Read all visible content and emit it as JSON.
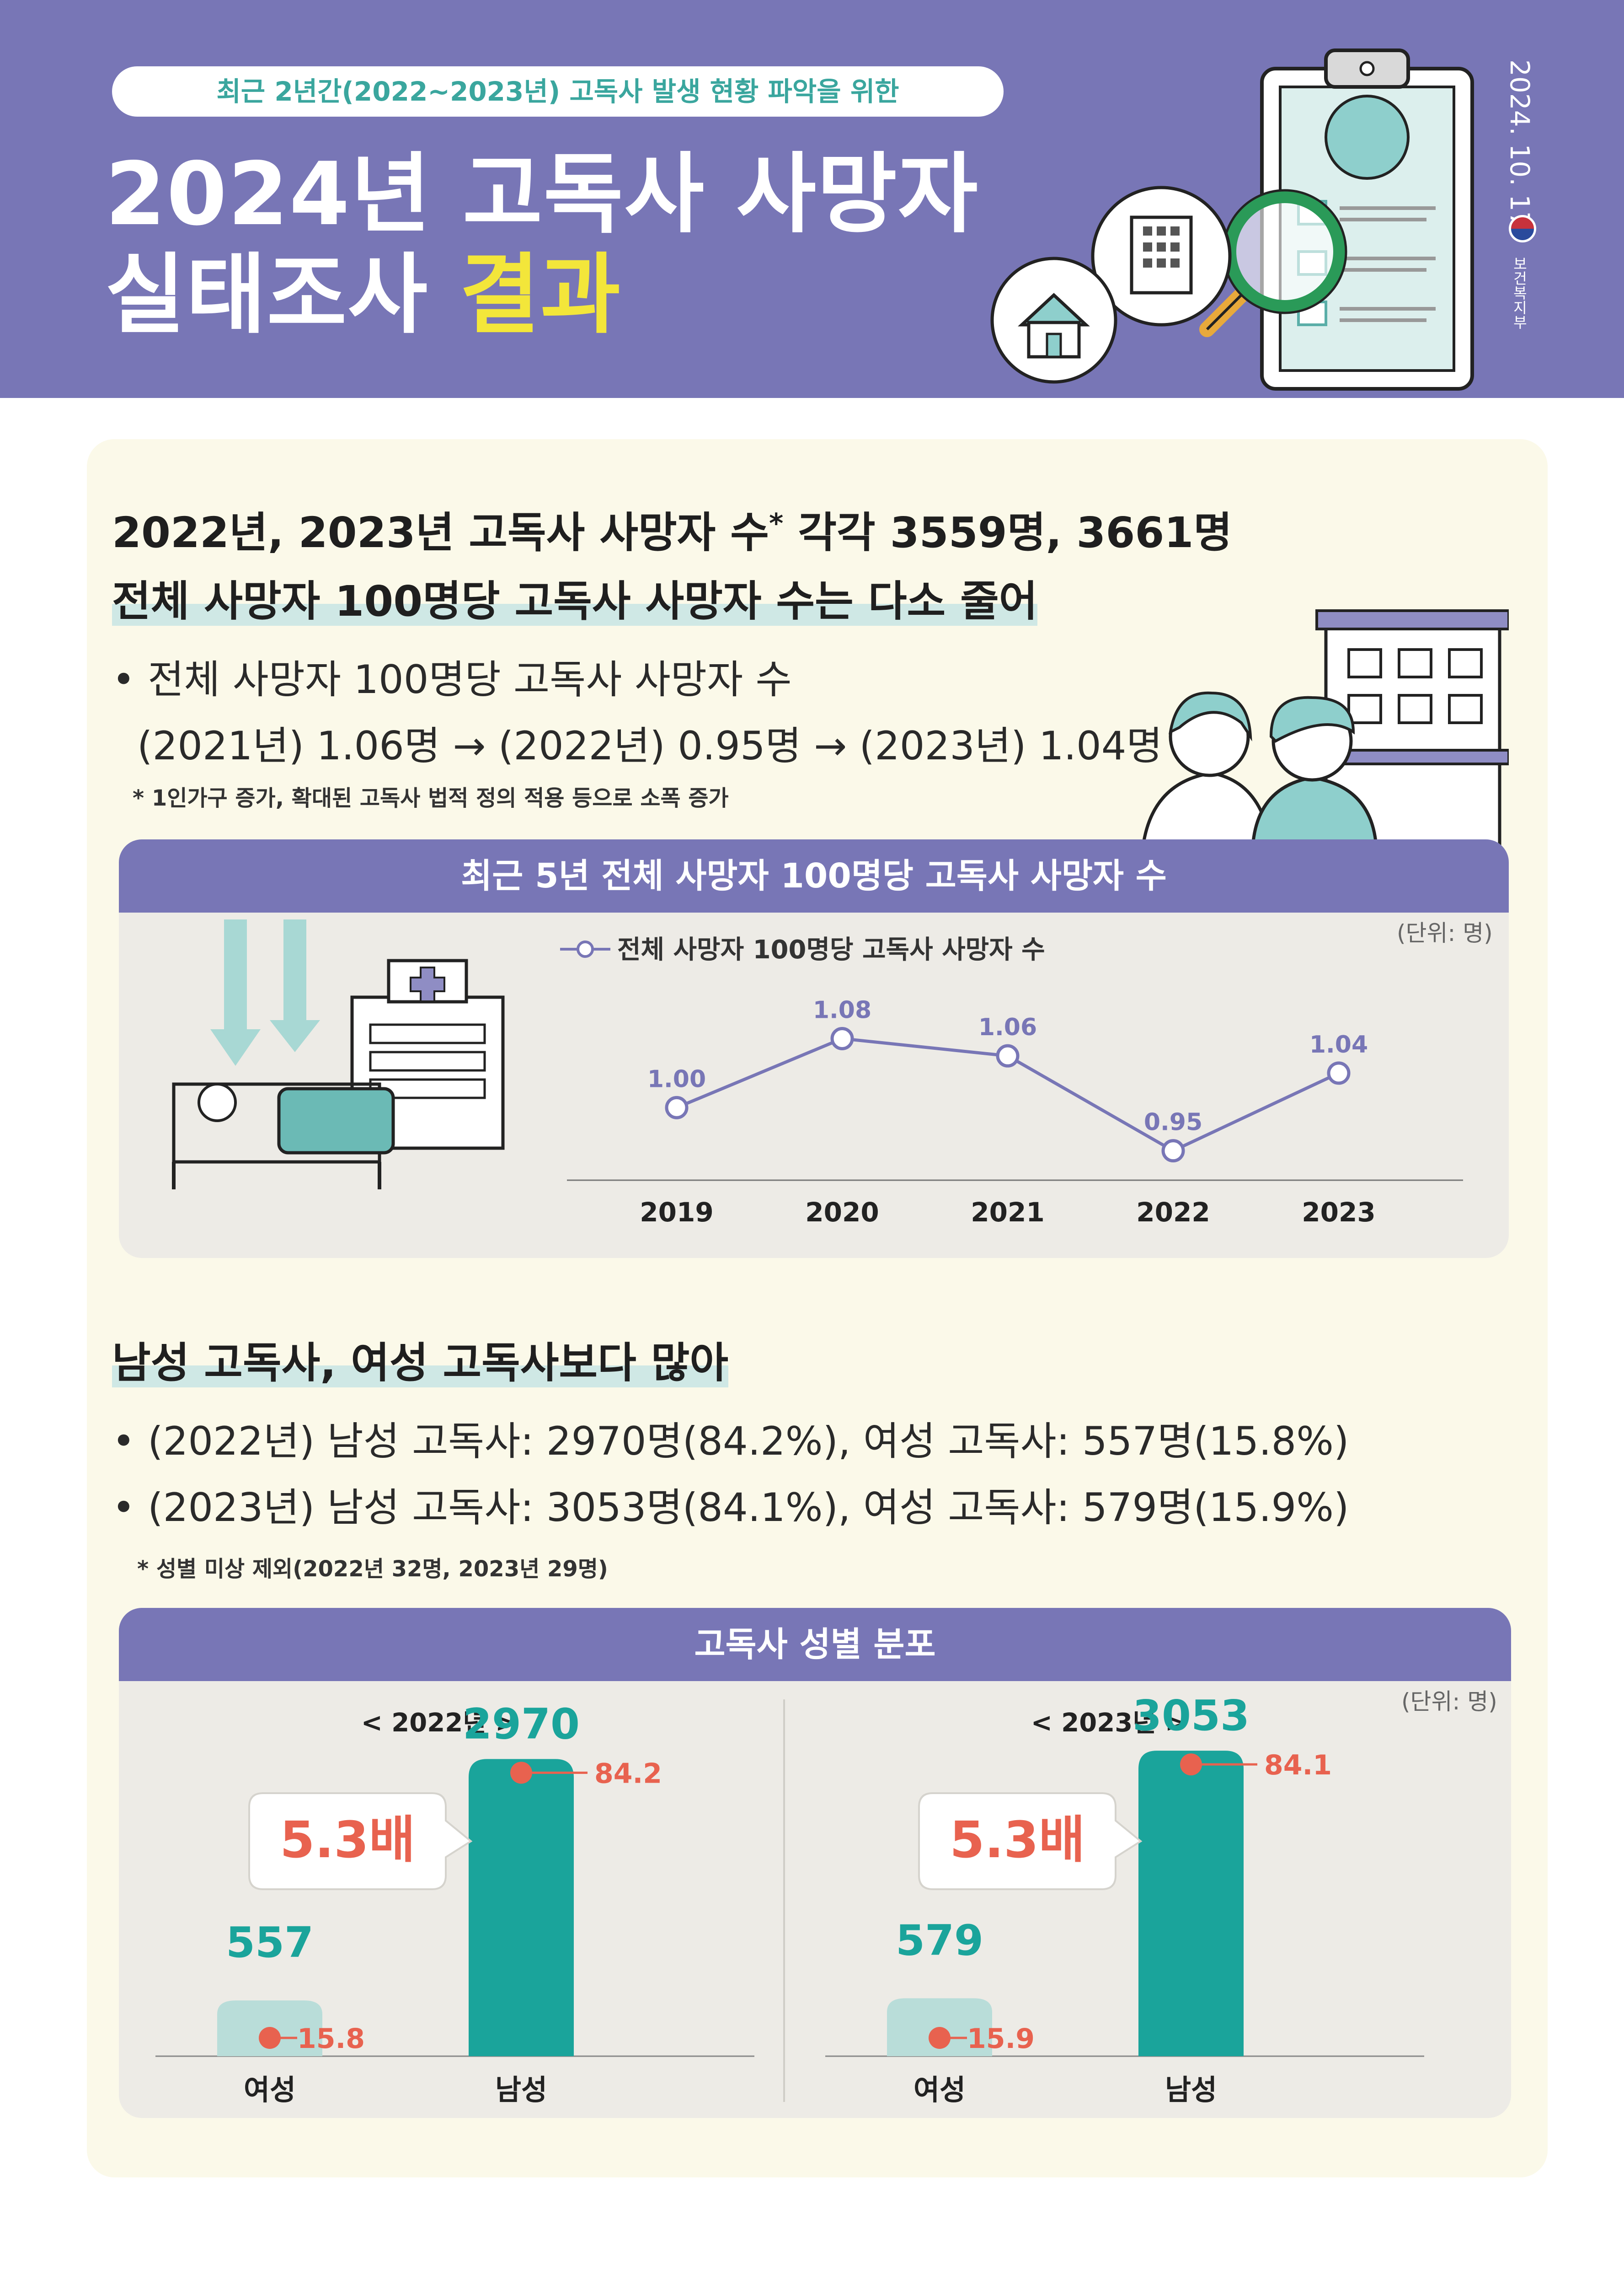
{
  "header": {
    "pill": "최근 2년간(2022~2023년) 고독사 발생 현황  파악을 위한",
    "title_line1": "2024년 고독사 사망자",
    "title_line2_a": "실태조사 ",
    "title_line2_b": "결과",
    "date": "2024. 10. 17.",
    "org": "보건복지부",
    "colors": {
      "header_bg": "#7876b6",
      "highlight": "#f3e63a",
      "teal": "#1aa49b",
      "coral": "#e8624f"
    }
  },
  "section1": {
    "title1": "2022년, 2023년 고독사 사망자 수",
    "title1_mark": "*",
    "title1_b": " 각각 3559명, 3661명",
    "title2": "전체 사망자 100명당 고독사 사망자 수는 다소 줄어",
    "bullet_a": "• 전체 사망자 100명당 고독사 사망자 수",
    "bullet_b": "(2021년) 1.06명 → (2022년) 0.95명 → (2023년) 1.04명",
    "note": "* 1인가구 증가, 확대된 고독사 법적 정의 적용 등으로 소폭 증가",
    "box_title": "최근 5년 전체 사망자 100명당 고독사 사망자 수",
    "unit": "(단위: 명)"
  },
  "section2": {
    "title": "남성 고독사, 여성 고독사보다 많아",
    "bullet_a": "• (2022년) 남성 고독사: 2970명(84.2%), 여성 고독사: 557명(15.8%)",
    "bullet_b": "• (2023년) 남성 고독사: 3053명(84.1%), 여성 고독사: 579명(15.9%)",
    "note": "* 성별 미상 제외(2022년 32명, 2023년 29명)",
    "box_title": "고독사 성별 분포",
    "unit": "(단위: 명)"
  },
  "chart_data": [
    {
      "type": "line",
      "title": "최근 5년 전체 사망자 100명당 고독사 사망자 수",
      "legend": "전체 사망자 100명당 고독사 사망자 수",
      "unit": "(단위: 명)",
      "x": [
        "2019",
        "2020",
        "2021",
        "2022",
        "2023"
      ],
      "series": [
        {
          "name": "전체 사망자 100명당 고독사 사망자 수",
          "values": [
            1.0,
            1.08,
            1.06,
            0.95,
            1.04
          ]
        }
      ],
      "labels": [
        "1.00",
        "1.08",
        "1.06",
        "0.95",
        "1.04"
      ]
    },
    {
      "type": "bar",
      "title": "고독사 성별 분포",
      "unit": "(단위: 명)",
      "panels": [
        {
          "year_label": "< 2022년 >",
          "ratio": "5.3배",
          "categories": [
            "여성",
            "남성"
          ],
          "values": [
            557,
            2970
          ],
          "value_labels": [
            "557",
            "2970"
          ],
          "pcts": [
            "15.8",
            "84.2"
          ],
          "pct_sign": "%"
        },
        {
          "year_label": "< 2023년 >",
          "ratio": "5.3배",
          "categories": [
            "여성",
            "남성"
          ],
          "values": [
            579,
            3053
          ],
          "value_labels": [
            "579",
            "3053"
          ],
          "pcts": [
            "15.9",
            "84.1"
          ],
          "pct_sign": "%"
        }
      ]
    }
  ]
}
